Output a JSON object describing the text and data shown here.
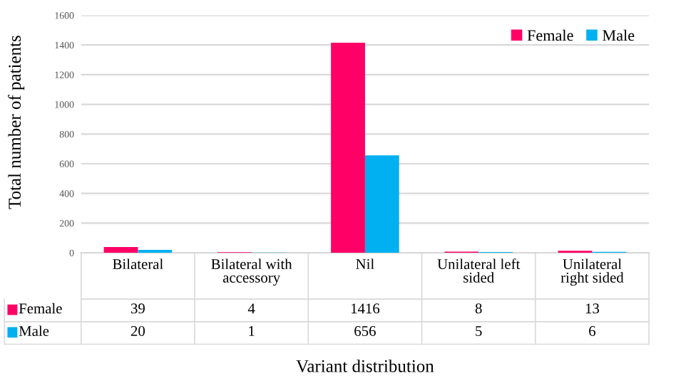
{
  "chart_data": {
    "type": "bar",
    "xlabel": "Variant distribution",
    "ylabel": "Total number of patients",
    "categories": [
      "Bilateral",
      "Bilateral with\naccessory",
      "Nil",
      "Unilateral left\nsided",
      "Unilateral\nright sided"
    ],
    "series": [
      {
        "name": "Female",
        "color": "#ff0066",
        "values": [
          39,
          4,
          1416,
          8,
          13
        ]
      },
      {
        "name": "Male",
        "color": "#00b0f0",
        "values": [
          20,
          1,
          656,
          5,
          6
        ]
      }
    ],
    "ylim": [
      0,
      1600
    ],
    "yticks": [
      0,
      200,
      400,
      600,
      800,
      1000,
      1200,
      1400,
      1600
    ],
    "grid": "y",
    "legend": "top right",
    "data_labels": true
  }
}
